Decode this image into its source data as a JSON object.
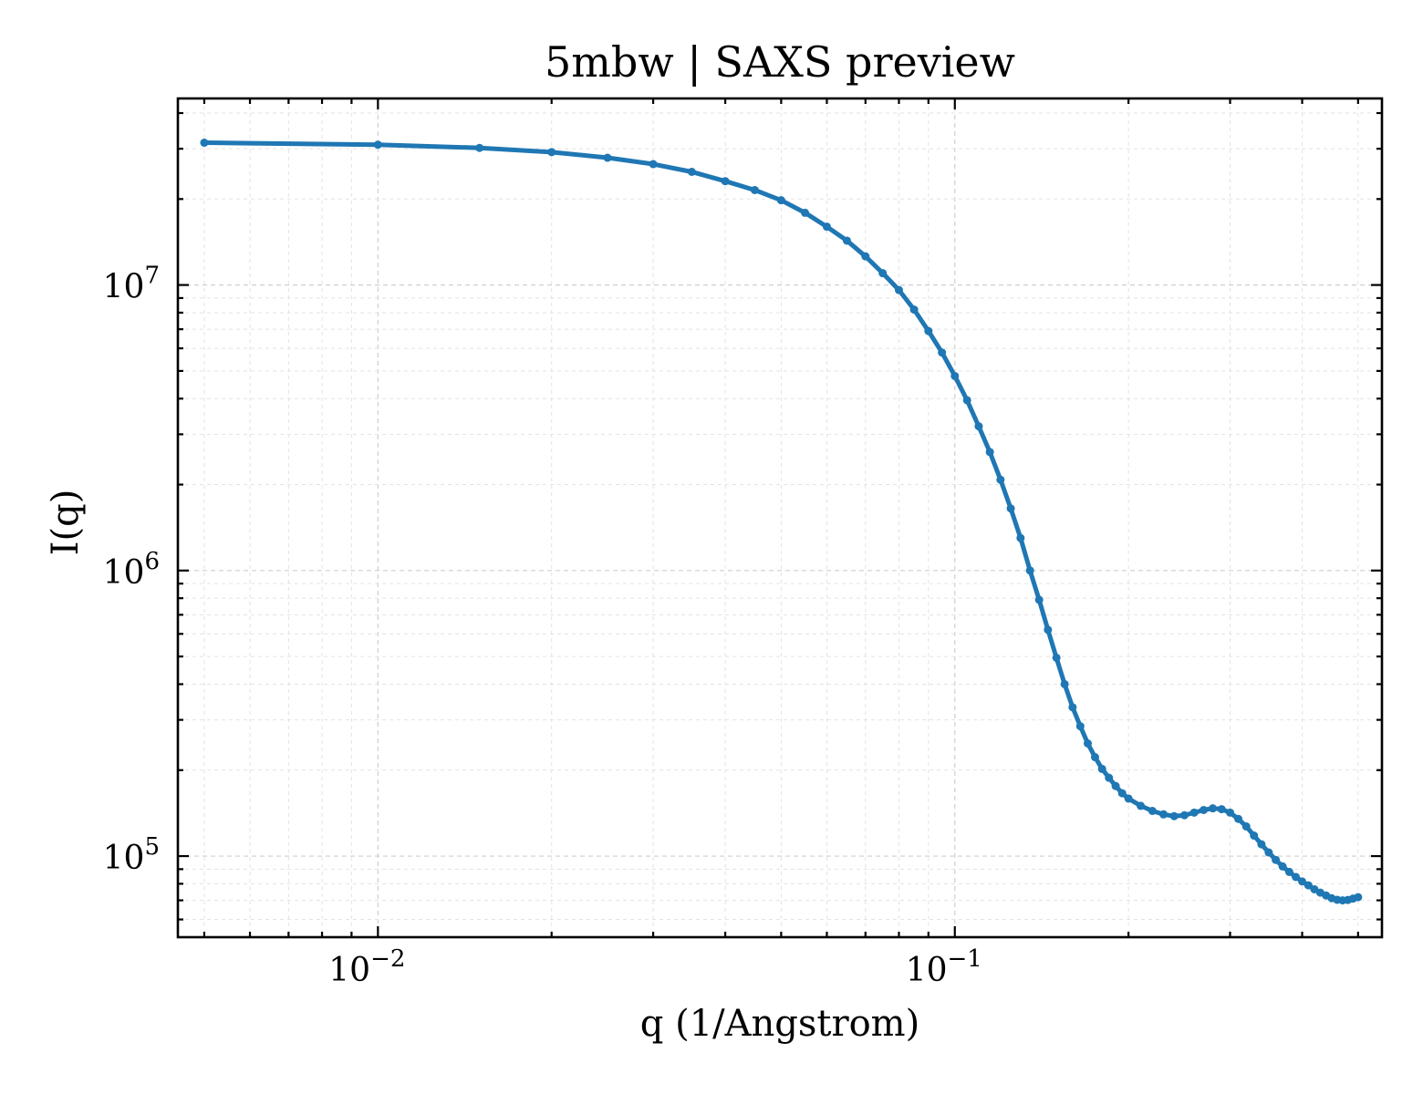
{
  "chart_data": {
    "type": "line",
    "title": "5mbw | SAXS preview",
    "xlabel": "q (1/Angstrom)",
    "ylabel": "I(q)",
    "xscale": "log",
    "yscale": "log",
    "xlim": [
      0.0045,
      0.55
    ],
    "ylim": [
      52000,
      45000000
    ],
    "grid": true,
    "legend": "none",
    "x_ticks": [
      {
        "value": 0.01,
        "base": "10",
        "exp": "−2"
      },
      {
        "value": 0.1,
        "base": "10",
        "exp": "−1"
      }
    ],
    "y_ticks": [
      {
        "value": 100000,
        "base": "10",
        "exp": "5"
      },
      {
        "value": 1000000,
        "base": "10",
        "exp": "6"
      },
      {
        "value": 10000000,
        "base": "10",
        "exp": "7"
      }
    ],
    "series": [
      {
        "color": "#1f77b4",
        "marker": "dot",
        "points": [
          [
            0.005,
            31500000
          ],
          [
            0.01,
            31000000
          ],
          [
            0.015,
            30200000
          ],
          [
            0.02,
            29200000
          ],
          [
            0.025,
            27900000
          ],
          [
            0.03,
            26500000
          ],
          [
            0.035,
            24900000
          ],
          [
            0.04,
            23100000
          ],
          [
            0.045,
            21500000
          ],
          [
            0.05,
            19800000
          ],
          [
            0.055,
            17900000
          ],
          [
            0.06,
            16000000
          ],
          [
            0.065,
            14300000
          ],
          [
            0.07,
            12600000
          ],
          [
            0.075,
            11000000
          ],
          [
            0.08,
            9600000
          ],
          [
            0.085,
            8200000
          ],
          [
            0.09,
            6900000
          ],
          [
            0.095,
            5800000
          ],
          [
            0.1,
            4800000
          ],
          [
            0.105,
            3950000
          ],
          [
            0.11,
            3200000
          ],
          [
            0.115,
            2600000
          ],
          [
            0.12,
            2080000
          ],
          [
            0.125,
            1650000
          ],
          [
            0.13,
            1300000
          ],
          [
            0.135,
            1000000
          ],
          [
            0.14,
            790000
          ],
          [
            0.145,
            620000
          ],
          [
            0.15,
            495000
          ],
          [
            0.155,
            400000
          ],
          [
            0.16,
            332000
          ],
          [
            0.165,
            285000
          ],
          [
            0.17,
            248000
          ],
          [
            0.175,
            222000
          ],
          [
            0.18,
            202000
          ],
          [
            0.185,
            188000
          ],
          [
            0.19,
            176000
          ],
          [
            0.195,
            166000
          ],
          [
            0.2,
            159000
          ],
          [
            0.21,
            150000
          ],
          [
            0.22,
            144000
          ],
          [
            0.23,
            140000
          ],
          [
            0.24,
            138000
          ],
          [
            0.25,
            139000
          ],
          [
            0.26,
            142000
          ],
          [
            0.27,
            145000
          ],
          [
            0.28,
            147000
          ],
          [
            0.29,
            146000
          ],
          [
            0.3,
            142000
          ],
          [
            0.31,
            135000
          ],
          [
            0.32,
            127000
          ],
          [
            0.33,
            118000
          ],
          [
            0.34,
            110000
          ],
          [
            0.35,
            103000
          ],
          [
            0.36,
            97000
          ],
          [
            0.37,
            92000
          ],
          [
            0.38,
            88000
          ],
          [
            0.39,
            84500
          ],
          [
            0.4,
            81500
          ],
          [
            0.41,
            79000
          ],
          [
            0.42,
            76500
          ],
          [
            0.43,
            74500
          ],
          [
            0.44,
            72800
          ],
          [
            0.45,
            71200
          ],
          [
            0.46,
            70300
          ],
          [
            0.47,
            70000
          ],
          [
            0.48,
            70200
          ],
          [
            0.49,
            71000
          ],
          [
            0.5,
            71800
          ]
        ]
      }
    ]
  }
}
